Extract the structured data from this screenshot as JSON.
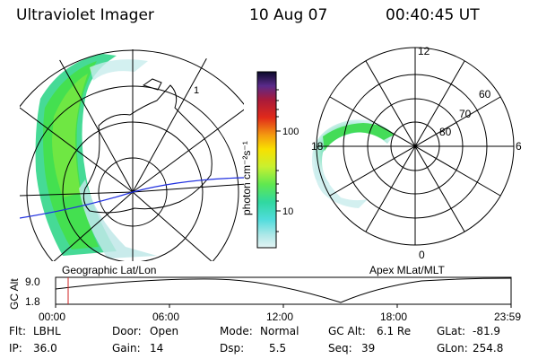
{
  "header": {
    "title": "Ultraviolet Imager",
    "date": "10 Aug 07",
    "time": "00:40:45 UT"
  },
  "left_panel": {
    "caption": "Geographic Lat/Lon",
    "border_label": "1"
  },
  "colorbar": {
    "unit_label": "photon cm⁻²s⁻¹",
    "ticks": [
      "100",
      "10"
    ],
    "colors": [
      "#0a0a2a",
      "#3a1a6a",
      "#6a2a9a",
      "#9a1a2a",
      "#cc1a1a",
      "#e84a1a",
      "#f07a10",
      "#f4a810",
      "#ffd000",
      "#f0f000",
      "#c8f030",
      "#80f040",
      "#40e060",
      "#30d0a0",
      "#40d8d8",
      "#80e0e0",
      "#c0ecec",
      "#e0f4f4"
    ]
  },
  "right_panel": {
    "caption": "Apex MLat/MLT",
    "mlt_labels": [
      "12",
      "18",
      "6",
      "0"
    ],
    "lat_labels": [
      "60",
      "70",
      "80"
    ]
  },
  "timeline": {
    "ylabel": "GC Alt",
    "y_ticks": [
      "9.0",
      "1.8"
    ],
    "x_ticks": [
      "00:00",
      "06:00",
      "12:00",
      "18:00",
      "23:59"
    ],
    "marker_time": "00:40:45"
  },
  "info": {
    "flt_label": "Flt:",
    "flt_value": "LBHL",
    "ip_label": "IP:",
    "ip_value": "36.0",
    "door_label": "Door:",
    "door_value": "Open",
    "gain_label": "Gain:",
    "gain_value": "14",
    "mode_label": "Mode:",
    "mode_value": "Normal",
    "dsp_label": "Dsp:",
    "dsp_value": "5.5",
    "gcalt_label": "GC Alt:",
    "gcalt_value": "6.1 Re",
    "seq_label": "Seq:",
    "seq_value": "39",
    "glat_label": "GLat:",
    "glat_value": "-81.9",
    "glon_label": "GLon:",
    "glon_value": "254.8"
  }
}
